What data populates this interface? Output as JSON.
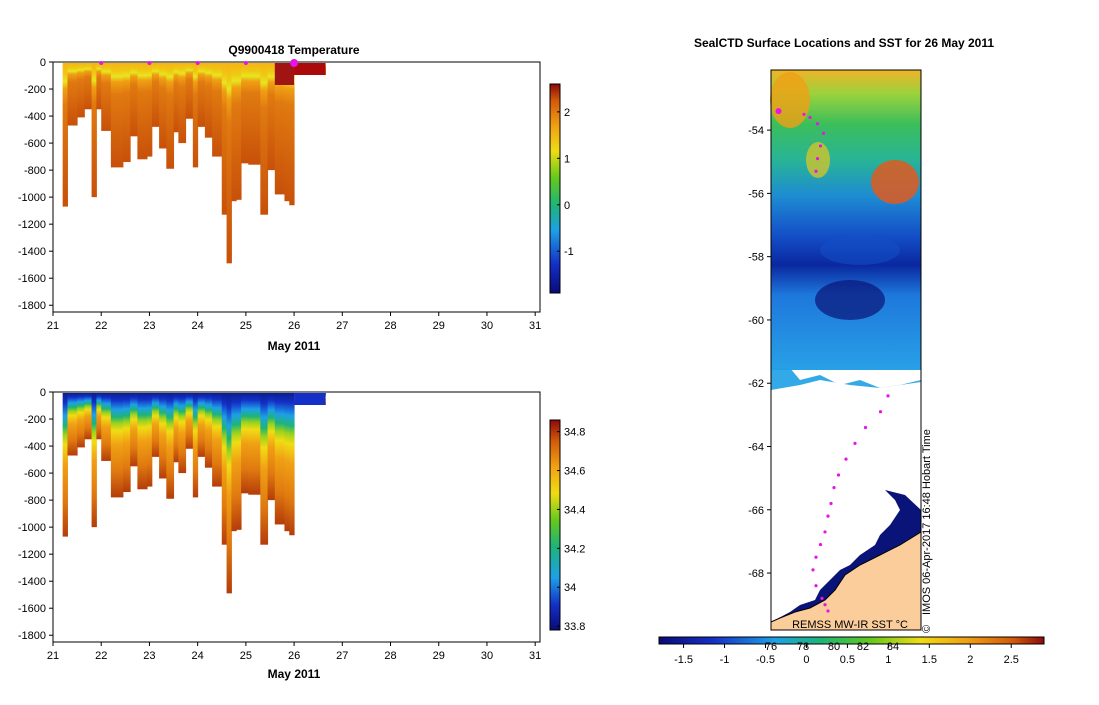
{
  "charts": [
    {
      "type": "heatmap",
      "title": "Q9900418  Temperature",
      "xlabel": "May 2011",
      "x_ticks": [
        "21",
        "22",
        "23",
        "24",
        "25",
        "26",
        "27",
        "28",
        "29",
        "30",
        "31"
      ],
      "y_ticks": [
        "0",
        "-200",
        "-400",
        "-600",
        "-800",
        "-1000",
        "-1200",
        "-1400",
        "-1600",
        "-1800"
      ],
      "xlim": [
        21,
        31.1
      ],
      "ylim": [
        -1850,
        0
      ],
      "colorbar": {
        "ticks": [
          "2",
          "1",
          "0",
          "-1"
        ],
        "tick_values": [
          2,
          1,
          0,
          -1
        ],
        "range": [
          -1.9,
          2.6
        ]
      },
      "profile_markers_x": [
        22,
        23,
        24,
        25,
        26
      ],
      "profiles": [
        {
          "x0": 21.2,
          "x1": 21.3,
          "depth": 1070
        },
        {
          "x0": 21.3,
          "x1": 21.5,
          "depth": 470
        },
        {
          "x0": 21.5,
          "x1": 21.65,
          "depth": 410
        },
        {
          "x0": 21.65,
          "x1": 21.8,
          "depth": 350
        },
        {
          "x0": 21.8,
          "x1": 21.9,
          "depth": 1000
        },
        {
          "x0": 21.9,
          "x1": 22.0,
          "depth": 350
        },
        {
          "x0": 22.0,
          "x1": 22.2,
          "depth": 510
        },
        {
          "x0": 22.2,
          "x1": 22.45,
          "depth": 780
        },
        {
          "x0": 22.45,
          "x1": 22.6,
          "depth": 740
        },
        {
          "x0": 22.6,
          "x1": 22.75,
          "depth": 550
        },
        {
          "x0": 22.75,
          "x1": 22.95,
          "depth": 720
        },
        {
          "x0": 22.95,
          "x1": 23.05,
          "depth": 700
        },
        {
          "x0": 23.05,
          "x1": 23.2,
          "depth": 480
        },
        {
          "x0": 23.2,
          "x1": 23.35,
          "depth": 640
        },
        {
          "x0": 23.35,
          "x1": 23.5,
          "depth": 790
        },
        {
          "x0": 23.5,
          "x1": 23.6,
          "depth": 520
        },
        {
          "x0": 23.6,
          "x1": 23.75,
          "depth": 600
        },
        {
          "x0": 23.75,
          "x1": 23.9,
          "depth": 420
        },
        {
          "x0": 23.9,
          "x1": 24.0,
          "depth": 780
        },
        {
          "x0": 24.0,
          "x1": 24.15,
          "depth": 480
        },
        {
          "x0": 24.15,
          "x1": 24.3,
          "depth": 560
        },
        {
          "x0": 24.3,
          "x1": 24.5,
          "depth": 700
        },
        {
          "x0": 24.5,
          "x1": 24.6,
          "depth": 1130
        },
        {
          "x0": 24.6,
          "x1": 24.7,
          "depth": 1490
        },
        {
          "x0": 24.7,
          "x1": 24.8,
          "depth": 1030
        },
        {
          "x0": 24.8,
          "x1": 24.9,
          "depth": 1020
        },
        {
          "x0": 24.9,
          "x1": 25.05,
          "depth": 750
        },
        {
          "x0": 25.05,
          "x1": 25.3,
          "depth": 760
        },
        {
          "x0": 25.3,
          "x1": 25.45,
          "depth": 1130
        },
        {
          "x0": 25.45,
          "x1": 25.6,
          "depth": 800
        },
        {
          "x0": 25.6,
          "x1": 25.8,
          "depth": 980
        },
        {
          "x0": 25.8,
          "x1": 25.9,
          "depth": 1030
        },
        {
          "x0": 25.9,
          "x1": 26.0,
          "depth": 1060
        },
        {
          "x0": 26.0,
          "x1": 26.65,
          "depth": 95
        }
      ]
    },
    {
      "type": "heatmap",
      "title": "",
      "xlabel": "May 2011",
      "x_ticks": [
        "21",
        "22",
        "23",
        "24",
        "25",
        "26",
        "27",
        "28",
        "29",
        "30",
        "31"
      ],
      "y_ticks": [
        "0",
        "-200",
        "-400",
        "-600",
        "-800",
        "-1000",
        "-1200",
        "-1400",
        "-1600",
        "-1800"
      ],
      "xlim": [
        21,
        31.1
      ],
      "ylim": [
        -1850,
        0
      ],
      "colorbar": {
        "ticks": [
          "34.8",
          "34.6",
          "34.4",
          "34.2",
          "34",
          "33.8"
        ],
        "tick_values": [
          34.8,
          34.6,
          34.4,
          34.2,
          34.0,
          33.8
        ],
        "range": [
          33.78,
          34.86
        ]
      }
    },
    {
      "type": "heatmap",
      "title": "SealCTD Surface Locations and SST for 26 May 2011",
      "y_ticks": [
        "-54",
        "-56",
        "-58",
        "-60",
        "-62",
        "-64",
        "-66",
        "-68"
      ],
      "y_tick_values": [
        -54,
        -56,
        -58,
        -60,
        -62,
        -64,
        -66,
        -68
      ],
      "ylim": [
        -69.8,
        -52.1
      ],
      "colorbar": {
        "ticks": [
          "-1.5",
          "-1",
          "-0.5",
          "0",
          "0.5",
          "1",
          "1.5",
          "2",
          "2.5"
        ],
        "tick_values": [
          -1.5,
          -1,
          -0.5,
          0,
          0.5,
          1,
          1.5,
          2,
          2.5
        ],
        "range": [
          -1.8,
          2.9
        ],
        "overlay_ticks": [
          "76",
          "78",
          "80",
          "82",
          "84"
        ]
      },
      "annotations": [
        "REMSS MW-IR SST °C",
        "IMOS 06-Apr-2017 16:48 Hobart Time",
        "©"
      ],
      "track_points": [
        [
          -53.4,
          0.05
        ],
        [
          -53.5,
          0.22
        ],
        [
          -53.6,
          0.26
        ],
        [
          -53.8,
          0.31
        ],
        [
          -54.1,
          0.35
        ],
        [
          -54.5,
          0.33
        ],
        [
          -54.9,
          0.31
        ],
        [
          -55.3,
          0.3
        ],
        [
          -62.4,
          0.78
        ],
        [
          -62.9,
          0.73
        ],
        [
          -63.4,
          0.63
        ],
        [
          -63.9,
          0.56
        ],
        [
          -64.4,
          0.5
        ],
        [
          -64.9,
          0.45
        ],
        [
          -65.3,
          0.42
        ],
        [
          -65.8,
          0.4
        ],
        [
          -66.2,
          0.38
        ],
        [
          -66.7,
          0.36
        ],
        [
          -67.1,
          0.33
        ],
        [
          -67.5,
          0.3
        ],
        [
          -67.9,
          0.28
        ],
        [
          -68.4,
          0.3
        ],
        [
          -68.8,
          0.34
        ],
        [
          -69.0,
          0.36
        ],
        [
          -69.2,
          0.38
        ]
      ]
    }
  ]
}
